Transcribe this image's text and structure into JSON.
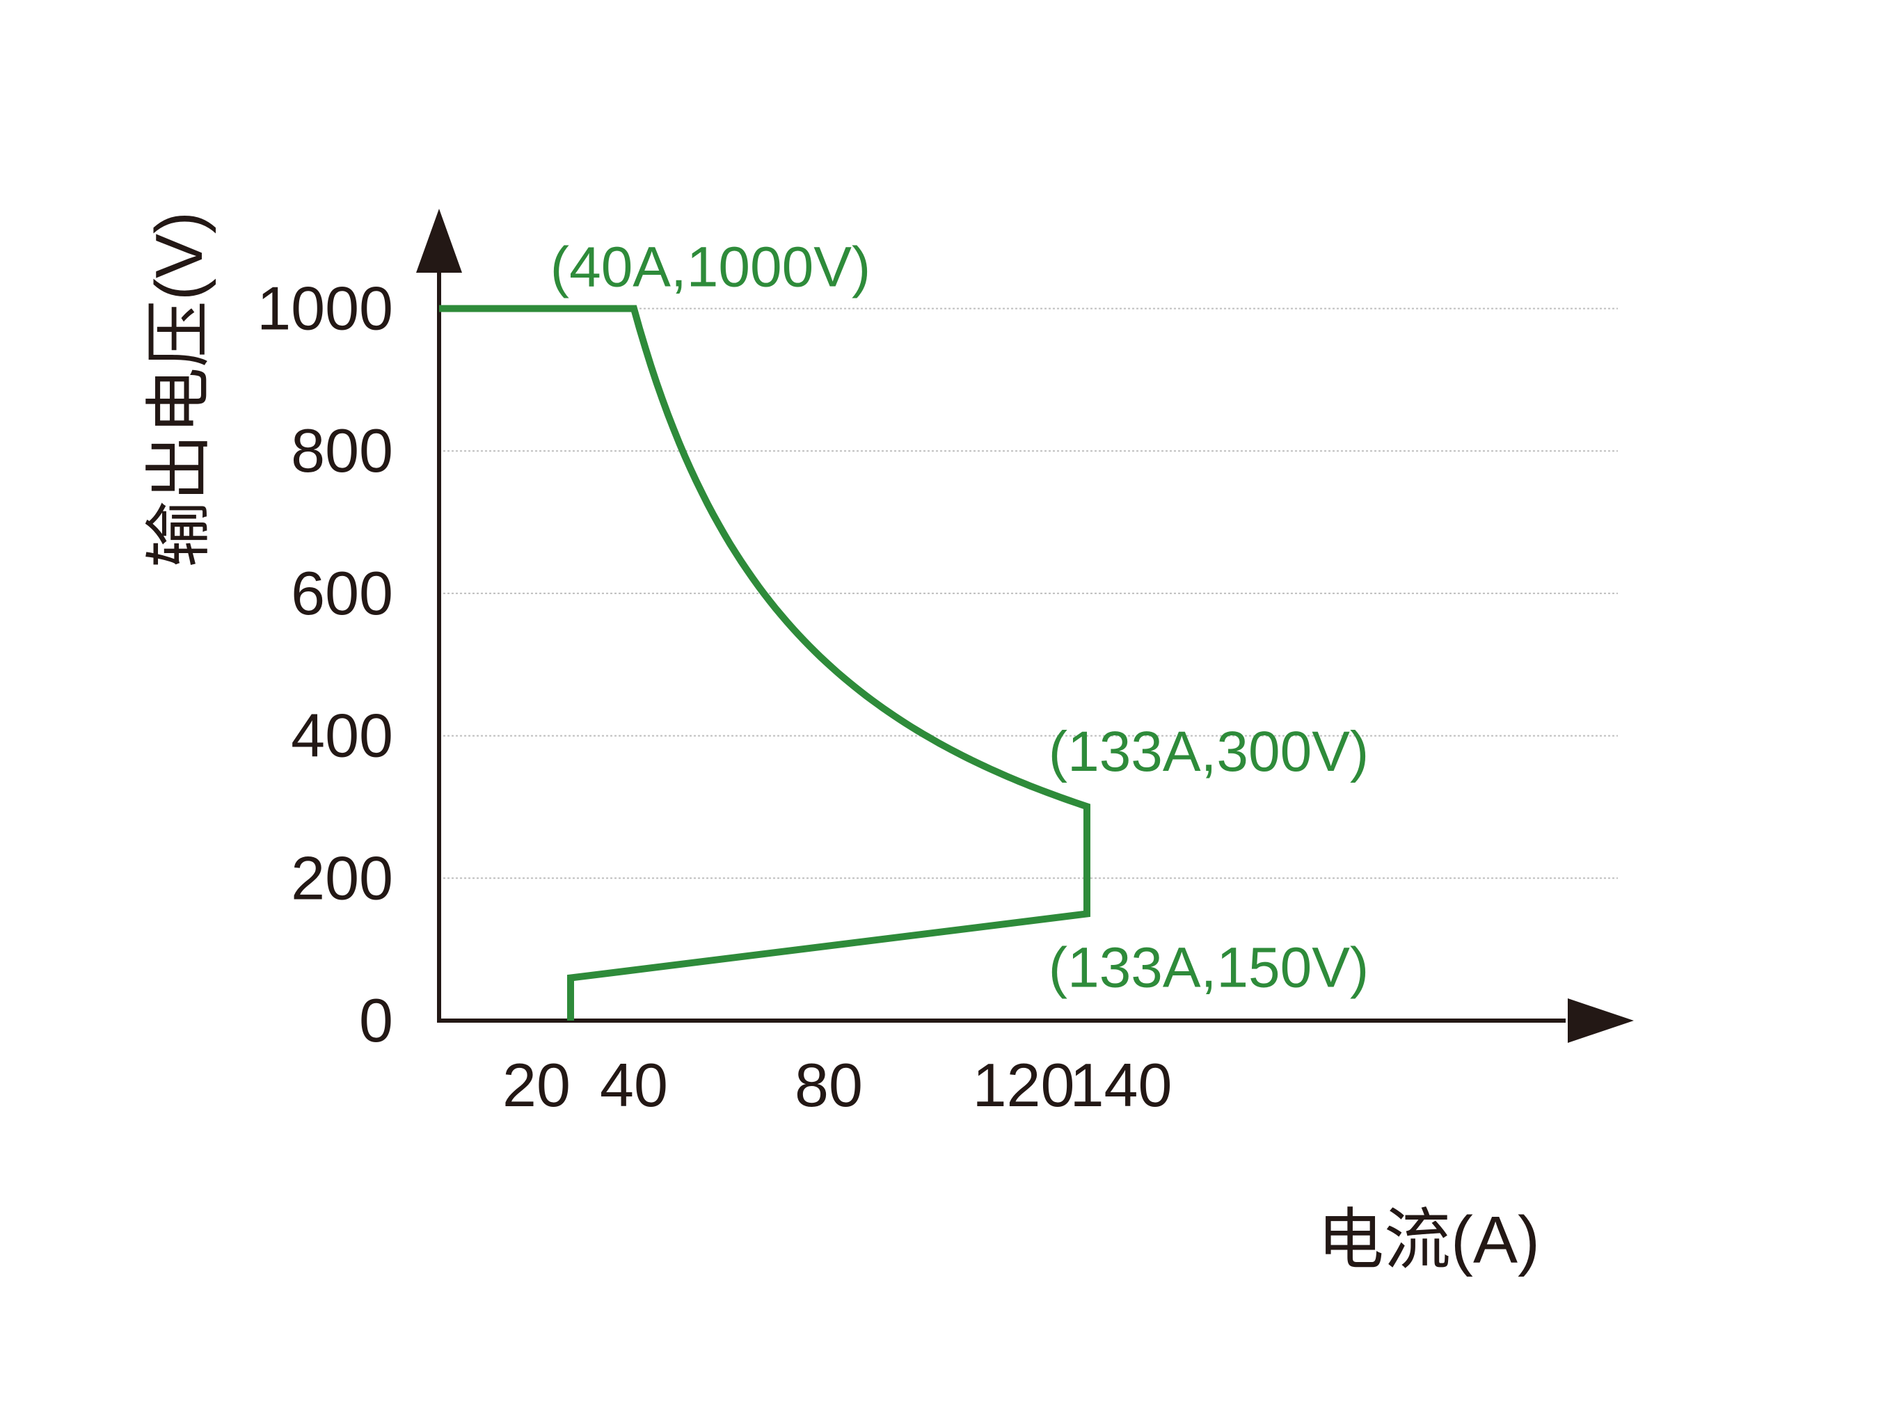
{
  "chart_data": {
    "type": "line",
    "xlabel": "电流(A)",
    "ylabel": "输出电压(V)",
    "x_ticks": [
      20,
      40,
      80,
      120,
      140
    ],
    "y_ticks": [
      0,
      200,
      400,
      600,
      800,
      1000
    ],
    "grid_y": true,
    "grid_x": false,
    "colors": {
      "axis": "#231815",
      "curve": "#2e8b3a",
      "annotation": "#2e8b3a",
      "grid": "#bfbfbf"
    },
    "series": [
      {
        "segments": [
          {
            "kind": "line",
            "points": [
              [
                0,
                1000
              ],
              [
                40,
                1000
              ]
            ]
          },
          {
            "kind": "constant_power",
            "power": 40000,
            "x_from": 40,
            "x_to": 133
          },
          {
            "kind": "line",
            "points": [
              [
                133,
                300
              ],
              [
                133,
                150
              ],
              [
                27,
                60
              ],
              [
                27,
                0
              ]
            ]
          }
        ]
      }
    ],
    "annotations": [
      {
        "text": "(40A,1000V)",
        "x": 40,
        "y": 1000
      },
      {
        "text": "(133A,300V)",
        "x": 133,
        "y": 300
      },
      {
        "text": "(133A,150V)",
        "x": 133,
        "y": 150
      }
    ]
  }
}
